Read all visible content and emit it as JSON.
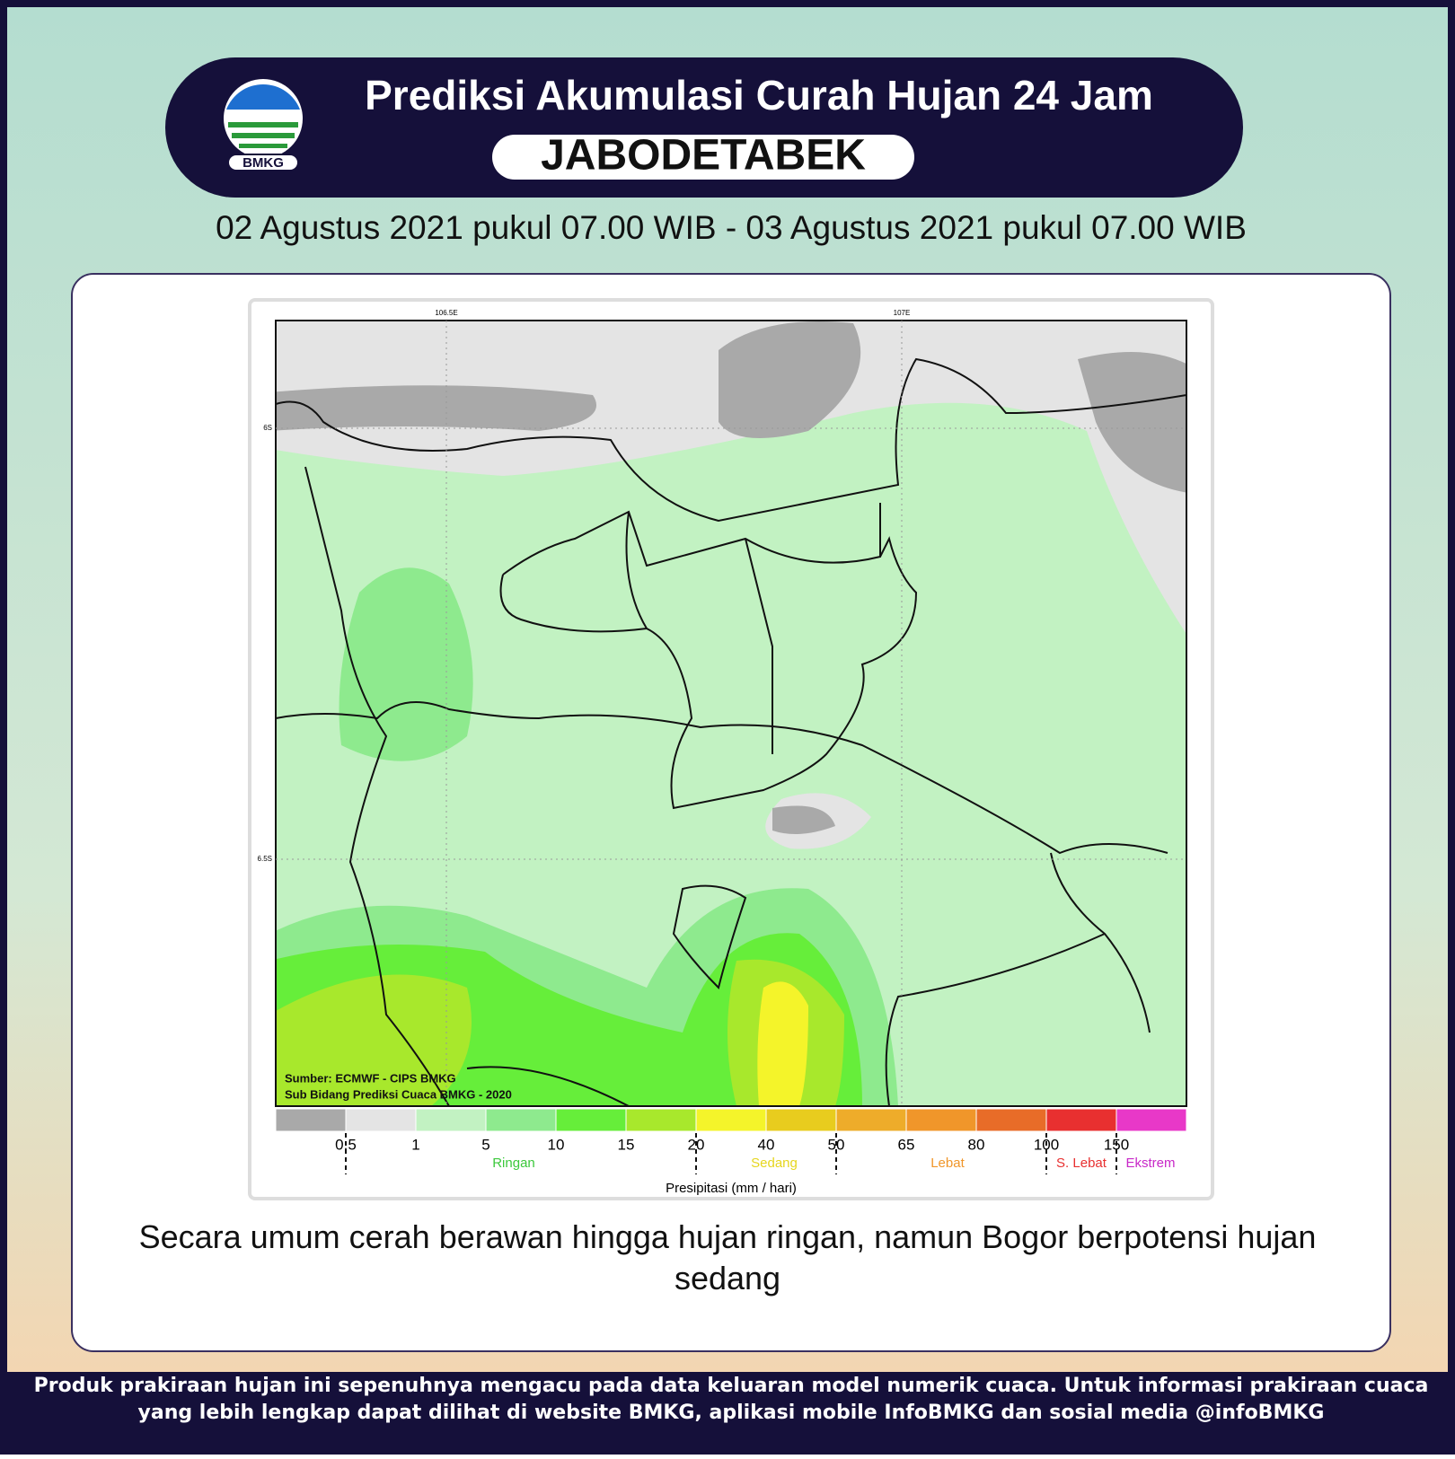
{
  "header": {
    "title": "Prediksi Akumulasi Curah Hujan 24 Jam",
    "region": "JABODETABEK",
    "logo_text": "BMKG"
  },
  "period": "02 Agustus 2021 pukul 07.00 WIB - 03 Agustus 2021 pukul 07.00 WIB",
  "map": {
    "x_labels": [
      "106.5E",
      "107E"
    ],
    "y_labels": [
      "6S",
      "6.5S"
    ],
    "source": [
      "Sumber: ECMWF - CIPS BMKG",
      "Sub Bidang Prediksi Cuaca BMKG - 2020"
    ]
  },
  "legend": {
    "colors": [
      "#a9a9a9",
      "#e4e4e4",
      "#c2f2c2",
      "#8eea8e",
      "#66ee3a",
      "#a8e82c",
      "#f4f42a",
      "#e8cc1e",
      "#eeac2a",
      "#f0962a",
      "#e86c28",
      "#e83030",
      "#e838c8"
    ],
    "ticks": [
      "0.5",
      "1",
      "5",
      "10",
      "15",
      "20",
      "40",
      "50",
      "65",
      "80",
      "100",
      "150"
    ],
    "classes": [
      {
        "label": "Ringan",
        "color": "#3cc83c"
      },
      {
        "label": "Sedang",
        "color": "#e6d61e"
      },
      {
        "label": "Lebat",
        "color": "#f0962a"
      },
      {
        "label": "S. Lebat",
        "color": "#e83030"
      },
      {
        "label": "Ekstrem",
        "color": "#c828c8"
      }
    ],
    "axis_title": "Presipitasi (mm / hari)"
  },
  "summary": "Secara umum cerah berawan hingga hujan ringan, namun Bogor berpotensi hujan sedang",
  "footer": [
    "Produk prakiraan hujan ini sepenuhnya mengacu pada data keluaran model numerik cuaca. Untuk informasi prakiraan cuaca",
    "yang lebih lengkap dapat dilihat di website BMKG, aplikasi mobile InfoBMKG dan sosial media @infoBMKG"
  ]
}
